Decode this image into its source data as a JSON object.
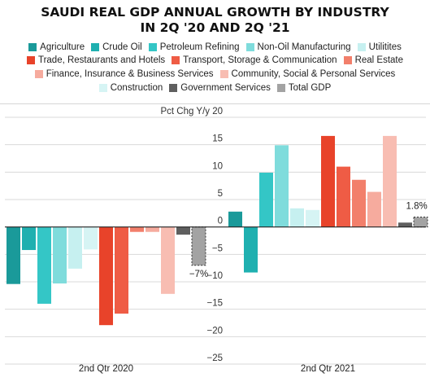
{
  "chart_data": {
    "type": "bar",
    "title_lines": [
      "SAUDI REAL GDP ANNUAL GROWTH BY INDUSTRY",
      "IN 2Q '20 AND 2Q '21"
    ],
    "ylabel": "Pct Chg Y/y",
    "ylim": [
      -25,
      20
    ],
    "yticks": [
      20,
      15,
      10,
      5,
      0,
      -5,
      -10,
      -15,
      -20,
      -25
    ],
    "grid": "horizontal",
    "legend_position": "top",
    "categories": [
      "2nd Qtr 2020",
      "2nd Qtr 2021"
    ],
    "series": [
      {
        "name": "Agriculture",
        "color": "#1a9a9a",
        "values": [
          -10.4,
          2.8
        ]
      },
      {
        "name": "Crude Oil",
        "color": "#1fb0b0",
        "values": [
          -4.2,
          -8.3
        ]
      },
      {
        "name": "Petroleum Refining",
        "color": "#34c6c6",
        "values": [
          -14.0,
          9.9
        ]
      },
      {
        "name": "Non-Oil Manufacturing",
        "color": "#7fdcdc",
        "values": [
          -10.3,
          14.9
        ]
      },
      {
        "name": "Utilitites",
        "color": "#c6f0f0",
        "values": [
          -7.6,
          3.4
        ]
      },
      {
        "name": "Construction",
        "color": "#d6f4f4",
        "values": [
          -4.1,
          3.1
        ]
      },
      {
        "name": "Trade, Restaurants and Hotels",
        "color": "#e8432a",
        "values": [
          -17.9,
          16.6
        ]
      },
      {
        "name": "Transport, Storage & Communication",
        "color": "#ef5c45",
        "values": [
          -15.8,
          11.0
        ]
      },
      {
        "name": "Real Estate",
        "color": "#f27f6b",
        "values": [
          -0.9,
          8.6
        ]
      },
      {
        "name": "Finance, Insurance & Business Services",
        "color": "#f6ab9e",
        "values": [
          -0.9,
          6.4
        ]
      },
      {
        "name": "Community, Social & Personal Services",
        "color": "#f8bdb2",
        "values": [
          -12.2,
          16.6
        ]
      },
      {
        "name": "Government Services",
        "color": "#5f5f5f",
        "values": [
          -1.4,
          0.8
        ]
      },
      {
        "name": "Total GDP",
        "color": "#a3a3a3",
        "values": [
          -7.0,
          1.8
        ]
      }
    ],
    "data_labels": [
      {
        "series": "Total GDP",
        "category": "2nd Qtr 2020",
        "text": "-7%"
      },
      {
        "series": "Total GDP",
        "category": "2nd Qtr 2021",
        "text": "1.8%"
      }
    ]
  },
  "legend_rows": [
    [
      "Agriculture",
      "Crude Oil",
      "Petroleum Refining",
      "Non-Oil Manufacturing",
      "Utilitites"
    ],
    [
      "Trade, Restaurants and Hotels",
      "Transport, Storage & Communication",
      "Real Estate"
    ],
    [
      "Finance, Insurance & Business Services",
      "Community, Social & Personal Services"
    ],
    [
      "Construction",
      "Government Services",
      "Total GDP"
    ]
  ]
}
